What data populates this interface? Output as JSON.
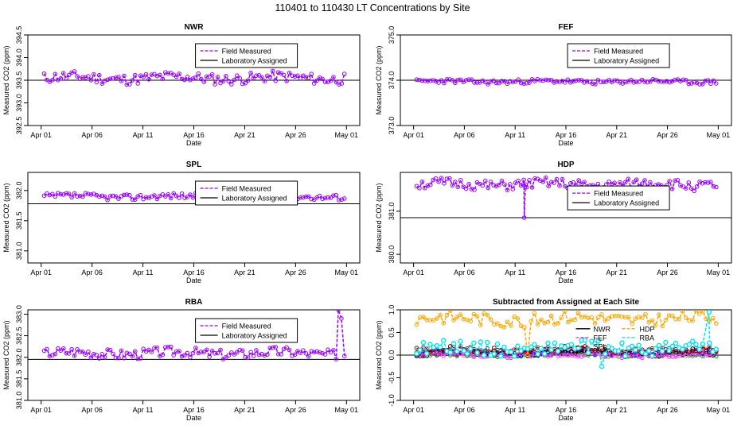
{
  "title": "110401  to  110430 LT Concentrations by Site",
  "legend_labels": [
    "Field Measured",
    "Laboratory Assigned"
  ],
  "colors": {
    "field": "#9900ff",
    "lab": "#000000",
    "NWR": "#000000",
    "FEF": "#ff33ff",
    "SPL": "#8b0000",
    "HDP": "#ffa500",
    "RBA": "#00e5ee",
    "extra_green": "#00a000",
    "extra_blue": "#0000ff"
  },
  "chart_data": [
    {
      "type": "line",
      "site": "NWR",
      "title": "NWR",
      "xlabel": "Date",
      "ylabel": "Measured CO2 (ppm)",
      "xlim": [
        0,
        30
      ],
      "ylim": [
        392.5,
        394.5
      ],
      "xticks": [
        0,
        5,
        10,
        15,
        20,
        25,
        30
      ],
      "xtick_labels": [
        "Apr 01",
        "Apr 06",
        "Apr 11",
        "Apr 16",
        "Apr 21",
        "Apr 26",
        "May 01"
      ],
      "yticks": [
        392.5,
        393.0,
        393.5,
        394.0,
        394.5
      ],
      "ytick_labels": [
        "392.5",
        "393.0",
        "393.5",
        "394.0",
        "394.5"
      ],
      "assigned": 393.5,
      "base": 393.55,
      "amp": 0.12,
      "seed": 11,
      "legend": "top-center"
    },
    {
      "type": "line",
      "site": "FEF",
      "title": "FEF",
      "xlabel": "Date",
      "ylabel": "Measured CO2 (ppm)",
      "xlim": [
        0,
        30
      ],
      "ylim": [
        373.0,
        375.0
      ],
      "xticks": [
        0,
        5,
        10,
        15,
        20,
        25,
        30
      ],
      "xtick_labels": [
        "Apr 01",
        "Apr 06",
        "Apr 11",
        "Apr 16",
        "Apr 21",
        "Apr 26",
        "May 01"
      ],
      "yticks": [
        373.0,
        374.0,
        375.0
      ],
      "ytick_labels": [
        "373.0",
        "374.0",
        "375.0"
      ],
      "assigned": 374.0,
      "base": 373.97,
      "amp": 0.05,
      "seed": 23,
      "legend": "top-right"
    },
    {
      "type": "line",
      "site": "SPL",
      "title": "SPL",
      "xlabel": "Date",
      "ylabel": "Measured CO2 (ppm)",
      "xlim": [
        0,
        30
      ],
      "ylim": [
        380.8,
        382.3
      ],
      "xticks": [
        0,
        5,
        10,
        15,
        20,
        25,
        30
      ],
      "xtick_labels": [
        "Apr 01",
        "Apr 06",
        "Apr 11",
        "Apr 16",
        "Apr 21",
        "Apr 26",
        "May 01"
      ],
      "yticks": [
        381.0,
        381.5,
        382.0
      ],
      "ytick_labels": [
        "381.0",
        "381.5",
        "382.0"
      ],
      "assigned": 381.78,
      "base": 381.9,
      "amp": 0.05,
      "seed": 37,
      "legend": "top-right"
    },
    {
      "type": "line",
      "site": "HDP",
      "title": "HDP",
      "xlabel": "Date",
      "ylabel": "Measured CO2 (ppm)",
      "xlim": [
        0,
        30
      ],
      "ylim": [
        379.8,
        381.9
      ],
      "xticks": [
        0,
        5,
        10,
        15,
        20,
        25,
        30
      ],
      "xtick_labels": [
        "Apr 01",
        "Apr 06",
        "Apr 11",
        "Apr 16",
        "Apr 21",
        "Apr 26",
        "May 01"
      ],
      "yticks": [
        380.0,
        381.0
      ],
      "ytick_labels": [
        "380.0",
        "381.0"
      ],
      "assigned": 380.85,
      "base": 381.62,
      "amp": 0.12,
      "seed": 51,
      "dip": {
        "x": 10.9,
        "y": 380.85
      },
      "legend": "center-right"
    },
    {
      "type": "line",
      "site": "RBA",
      "title": "RBA",
      "xlabel": "Date",
      "ylabel": "Measured CO2 (ppm)",
      "xlim": [
        0,
        30
      ],
      "ylim": [
        381.0,
        383.1
      ],
      "xticks": [
        0,
        5,
        10,
        15,
        20,
        25,
        30
      ],
      "xtick_labels": [
        "Apr 01",
        "Apr 06",
        "Apr 11",
        "Apr 16",
        "Apr 21",
        "Apr 26",
        "May 01"
      ],
      "yticks": [
        381.0,
        381.5,
        382.0,
        382.5,
        383.0
      ],
      "ytick_labels": [
        "381.0",
        "381.5",
        "382.0",
        "382.5",
        "383.0"
      ],
      "assigned": 381.95,
      "base": 382.1,
      "amp": 0.12,
      "seed": 67,
      "spike": {
        "x": 29.5,
        "y": 383.1
      },
      "legend": "top-right"
    },
    {
      "type": "line",
      "site": "ALL",
      "title": "Subtracted from Assigned at Each Site",
      "xlabel": "Date",
      "ylabel": "Measured CO2 (ppm)",
      "xlim": [
        0,
        30
      ],
      "ylim": [
        -1.0,
        1.0
      ],
      "xticks": [
        0,
        5,
        10,
        15,
        20,
        25,
        30
      ],
      "xtick_labels": [
        "Apr 01",
        "Apr 06",
        "Apr 11",
        "Apr 16",
        "Apr 21",
        "Apr 26",
        "May 01"
      ],
      "yticks": [
        -1.0,
        -0.5,
        0.0,
        0.5,
        1.0
      ],
      "ytick_labels": [
        "-1.0",
        "-0.5",
        "0.0",
        "0.5",
        "1.0"
      ],
      "assigned": 0.0,
      "series": [
        {
          "name": "NWR",
          "base": 0.05,
          "amp": 0.08,
          "seed": 71
        },
        {
          "name": "FEF",
          "base": 0.0,
          "amp": 0.05,
          "seed": 73
        },
        {
          "name": "SPL",
          "base": 0.12,
          "amp": 0.07,
          "seed": 79
        },
        {
          "name": "HDP",
          "base": 0.8,
          "amp": 0.15,
          "seed": 83
        },
        {
          "name": "RBA",
          "base": 0.15,
          "amp": 0.15,
          "seed": 89
        }
      ],
      "legend_entries": [
        "NWR",
        "HDP",
        "FEF",
        "RBA",
        "SPL"
      ],
      "legend": "center-right"
    }
  ]
}
